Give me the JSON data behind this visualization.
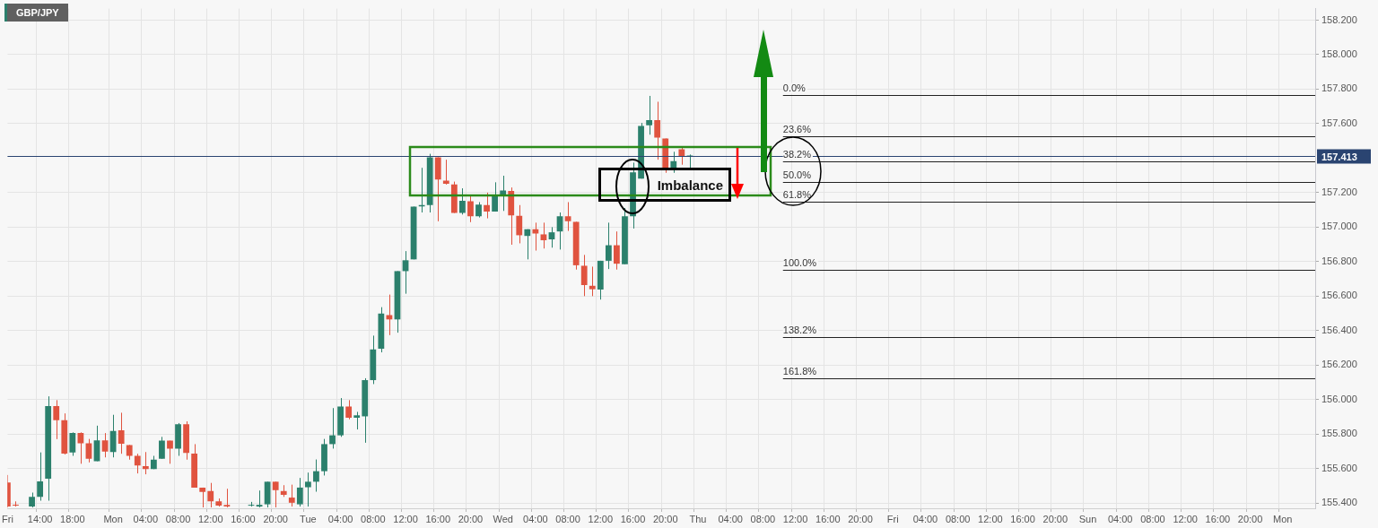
{
  "chart_data": {
    "type": "candlestick",
    "title": "GBP/JPY",
    "annotations": [
      "Imbalance",
      {
        "text": "0.0%",
        "y": 157.767
      },
      {
        "text": "23.6%",
        "y": 157.528
      },
      {
        "text": "38.2%",
        "y": 157.38
      },
      {
        "text": "50.0%",
        "y": 157.262
      },
      {
        "text": "61.8%",
        "y": 157.145
      },
      {
        "text": "100.0%",
        "y": 156.752
      },
      {
        "text": "138.2%",
        "y": 156.364
      },
      {
        "text": "161.8%",
        "y": 156.124
      }
    ],
    "categories": [
      "Fri",
      null,
      null,
      null,
      "14:00",
      null,
      null,
      null,
      "18:00",
      null,
      null,
      null,
      null,
      "Mon",
      null,
      null,
      null,
      "04:00",
      null,
      null,
      null,
      "08:00",
      null,
      null,
      null,
      "12:00",
      null,
      null,
      null,
      "16:00",
      null,
      null,
      null,
      "20:00",
      null,
      null,
      null,
      "Tue",
      null,
      null,
      null,
      "04:00",
      null,
      null,
      null,
      "08:00",
      null,
      null,
      null,
      "12:00",
      null,
      null,
      null,
      "16:00",
      null,
      null,
      null,
      "20:00",
      null,
      null,
      null,
      "Wed",
      null,
      null,
      null,
      "04:00",
      null,
      null,
      null,
      "08:00",
      null,
      null,
      null,
      "12:00",
      null,
      null,
      null,
      "16:00",
      null,
      null,
      null,
      "20:00",
      null,
      null,
      null,
      "Thu",
      null,
      null,
      null,
      "04:00",
      null,
      null,
      null,
      "08:00",
      null,
      null,
      null,
      "12:00",
      null,
      null,
      null,
      "16:00",
      null,
      null,
      null,
      "20:00",
      null,
      null,
      null,
      "Fri",
      null,
      null,
      null,
      "04:00",
      null,
      null,
      null,
      "08:00",
      null,
      null,
      null,
      "12:00",
      null,
      null,
      null,
      "16:00",
      null,
      null,
      null,
      "20:00",
      null,
      null,
      null,
      "Sun",
      null,
      null,
      null,
      "04:00",
      null,
      null,
      null,
      "08:00",
      null,
      null,
      null,
      "12:00",
      null,
      null,
      null,
      "16:00",
      null,
      null,
      null,
      "20:00",
      null,
      null,
      null,
      "Mon",
      null,
      null,
      null,
      null
    ],
    "series": [
      {
        "color": "#2b806c",
        "ohlc": [
          null,
          null,
          null,
          [
            155.38,
            155.461,
            155.375,
            155.436
          ],
          [
            155.436,
            155.694,
            155.414,
            155.526
          ],
          [
            155.541,
            156.019,
            155.414,
            155.963
          ],
          null,
          null,
          [
            155.693,
            155.81,
            155.674,
            155.806
          ],
          null,
          null,
          [
            155.643,
            155.849,
            155.643,
            155.764
          ],
          null,
          [
            155.696,
            155.912,
            155.665,
            155.818
          ],
          null,
          null,
          null,
          null,
          [
            155.597,
            155.674,
            155.597,
            155.652
          ],
          [
            155.657,
            155.784,
            155.657,
            155.762
          ],
          null,
          [
            155.716,
            155.864,
            155.674,
            155.857
          ],
          null,
          null,
          null,
          null,
          null,
          null,
          null,
          null,
          [
            155.385,
            155.407,
            155.38,
            155.39
          ],
          [
            155.38,
            155.473,
            155.375,
            155.39
          ],
          [
            155.393,
            155.524,
            155.375,
            155.524
          ],
          null,
          null,
          null,
          [
            155.393,
            155.546,
            155.38,
            155.49
          ],
          [
            155.492,
            155.577,
            155.38,
            155.524
          ],
          [
            155.524,
            155.653,
            155.466,
            155.585
          ],
          [
            155.585,
            155.772,
            155.56,
            155.742
          ],
          [
            155.742,
            155.951,
            155.716,
            155.793
          ],
          [
            155.793,
            156.009,
            155.784,
            155.96
          ],
          null,
          [
            155.895,
            155.929,
            155.827,
            155.909
          ],
          [
            155.903,
            156.124,
            155.75,
            156.113
          ],
          [
            156.113,
            156.371,
            156.09,
            156.291
          ],
          [
            156.295,
            156.536,
            156.274,
            156.499
          ],
          null,
          [
            156.465,
            156.745,
            156.388,
            156.745
          ],
          [
            156.745,
            156.861,
            156.614,
            156.808
          ],
          [
            156.813,
            157.119,
            156.813,
            157.119
          ],
          [
            157.12,
            157.344,
            157.085,
            157.128
          ],
          [
            157.128,
            157.425,
            157.085,
            157.405
          ],
          null,
          null,
          null,
          [
            157.082,
            157.225,
            157.073,
            157.153
          ],
          null,
          [
            157.063,
            157.145,
            157.056,
            157.131
          ],
          null,
          [
            157.09,
            157.26,
            157.09,
            157.184
          ],
          [
            157.184,
            157.298,
            157.094,
            157.213
          ],
          null,
          null,
          [
            156.949,
            156.988,
            156.813,
            156.988
          ],
          null,
          null,
          [
            156.929,
            157.0,
            156.881,
            156.97
          ],
          [
            156.975,
            157.085,
            156.87,
            157.063
          ],
          null,
          null,
          null,
          null,
          [
            156.638,
            156.805,
            156.58,
            156.805
          ],
          [
            156.805,
            157.026,
            156.757,
            156.895
          ],
          null,
          [
            156.785,
            157.111,
            156.785,
            157.063
          ],
          [
            157.063,
            157.374,
            156.992,
            157.318
          ],
          [
            157.281,
            157.604,
            157.281,
            157.587
          ],
          [
            157.59,
            157.761,
            157.536,
            157.621
          ],
          null,
          null,
          [
            157.34,
            157.437,
            157.315,
            157.383
          ],
          null,
          [
            157.41,
            157.421,
            157.34,
            157.413
          ],
          null,
          null,
          null,
          null,
          null,
          null,
          null,
          null,
          null,
          null,
          null,
          null,
          null,
          null,
          null,
          null,
          null,
          null,
          null,
          null,
          null,
          null,
          null,
          null,
          null,
          null,
          null,
          null,
          null,
          null,
          null,
          null,
          null,
          null,
          null,
          null,
          null,
          null,
          null,
          null,
          null,
          null,
          null,
          null,
          null,
          null,
          null,
          null,
          null,
          null,
          null,
          null,
          null,
          null,
          null,
          null,
          null,
          null,
          null,
          null,
          null,
          null,
          null,
          null,
          null,
          null,
          null,
          null,
          null,
          null,
          null,
          null,
          null,
          null,
          null,
          null,
          null
        ]
      },
      {
        "color": "#e0533f",
        "ohlc": [
          [
            155.52,
            155.563,
            155.375,
            155.38
          ],
          [
            155.39,
            155.41,
            155.38,
            155.385
          ],
          null,
          null,
          null,
          null,
          [
            155.963,
            155.997,
            155.771,
            155.881
          ],
          [
            155.881,
            155.92,
            155.682,
            155.687
          ],
          null,
          [
            155.806,
            155.81,
            155.628,
            155.747
          ],
          [
            155.747,
            155.772,
            155.636,
            155.657
          ],
          null,
          [
            155.764,
            155.806,
            155.665,
            155.699
          ],
          null,
          [
            155.822,
            155.924,
            155.686,
            155.744
          ],
          [
            155.737,
            155.737,
            155.652,
            155.674
          ],
          [
            155.674,
            155.686,
            155.572,
            155.618
          ],
          [
            155.614,
            155.696,
            155.567,
            155.597
          ],
          null,
          null,
          [
            155.762,
            155.762,
            155.628,
            155.716
          ],
          null,
          [
            155.857,
            155.874,
            155.652,
            155.691
          ],
          [
            155.687,
            155.742,
            155.49,
            155.49
          ],
          [
            155.49,
            155.49,
            155.375,
            155.465
          ],
          [
            155.47,
            155.517,
            155.375,
            155.41
          ],
          [
            155.41,
            155.427,
            155.38,
            155.385
          ],
          [
            155.39,
            155.483,
            155.375,
            155.38
          ],
          null,
          null,
          null,
          null,
          null,
          [
            155.524,
            155.524,
            155.375,
            155.475
          ],
          [
            155.47,
            155.504,
            155.436,
            155.448
          ],
          [
            155.432,
            155.507,
            155.38,
            155.402
          ],
          null,
          null,
          null,
          null,
          null,
          null,
          [
            155.96,
            155.997,
            155.886,
            155.895
          ],
          null,
          null,
          null,
          null,
          [
            156.49,
            156.609,
            156.374,
            156.465
          ],
          null,
          null,
          null,
          null,
          null,
          [
            157.405,
            157.405,
            157.034,
            157.276
          ],
          [
            157.269,
            157.391,
            157.247,
            157.252
          ],
          [
            157.247,
            157.264,
            157.082,
            157.082
          ],
          null,
          [
            157.15,
            157.187,
            157.029,
            157.063
          ],
          null,
          [
            157.128,
            157.2,
            157.051,
            157.09
          ],
          null,
          null,
          [
            157.21,
            157.23,
            156.898,
            157.068
          ],
          [
            157.065,
            157.128,
            156.906,
            156.953
          ],
          null,
          [
            156.988,
            157.026,
            156.864,
            156.963
          ],
          [
            156.958,
            157.026,
            156.876,
            156.924
          ],
          null,
          null,
          [
            157.063,
            157.145,
            156.978,
            157.034
          ],
          [
            157.031,
            157.031,
            156.754,
            156.779
          ],
          [
            156.776,
            156.839,
            156.6,
            156.664
          ],
          [
            156.66,
            156.771,
            156.6,
            156.64
          ],
          null,
          null,
          [
            156.895,
            156.975,
            156.754,
            156.788
          ],
          null,
          null,
          null,
          null,
          [
            157.621,
            157.727,
            157.391,
            157.519
          ],
          [
            157.514,
            157.514,
            157.315,
            157.34
          ],
          null,
          [
            157.451,
            157.468,
            157.362,
            157.413
          ],
          null,
          null,
          null,
          null,
          null,
          null,
          null,
          null,
          null,
          null,
          null,
          null,
          null,
          null,
          null,
          null,
          null,
          null,
          null,
          null,
          null,
          null,
          null,
          null,
          null,
          null,
          null,
          null,
          null,
          null,
          null,
          null,
          null,
          null,
          null,
          null,
          null,
          null,
          null,
          null,
          null,
          null,
          null,
          null,
          null,
          null,
          null,
          null,
          null,
          null,
          null,
          null,
          null,
          null,
          null,
          null,
          null,
          null,
          null,
          null,
          null,
          null,
          null,
          null,
          null,
          null,
          null,
          null,
          null,
          null,
          null,
          null,
          null,
          null,
          null,
          null,
          null,
          null
        ]
      }
    ],
    "ylim": [
      155.37,
      158.267
    ],
    "yticks": [
      {
        "value": 155.4,
        "label": "155.400"
      },
      {
        "value": 155.6,
        "label": "155.600"
      },
      {
        "value": 155.8,
        "label": "155.800"
      },
      {
        "value": 156,
        "label": "156.000"
      },
      {
        "value": 156.2,
        "label": "156.200"
      },
      {
        "value": 156.4,
        "label": "156.400"
      },
      {
        "value": 156.6,
        "label": "156.600"
      },
      {
        "value": 156.8,
        "label": "156.800"
      },
      {
        "value": 157,
        "label": "157.000"
      },
      {
        "value": 157.2,
        "label": "157.200"
      },
      {
        "value": 157.6,
        "label": "157.600"
      },
      {
        "value": 157.8,
        "label": "157.800"
      },
      {
        "value": 158,
        "label": "158.000"
      },
      {
        "value": 158.2,
        "label": "158.200"
      }
    ],
    "grid": true,
    "ref_lines": [
      {
        "axis": "y",
        "value": 157.413,
        "label": "157.413",
        "color": "#2a4471"
      },
      {
        "axis": "y",
        "value": 157.767
      },
      {
        "axis": "y",
        "value": 157.528
      },
      {
        "axis": "y",
        "value": 157.38
      },
      {
        "axis": "y",
        "value": 157.262
      },
      {
        "axis": "y",
        "value": 157.145
      },
      {
        "axis": "y",
        "value": 156.752
      },
      {
        "axis": "y",
        "value": 156.364
      },
      {
        "axis": "y",
        "value": 156.124
      }
    ]
  }
}
